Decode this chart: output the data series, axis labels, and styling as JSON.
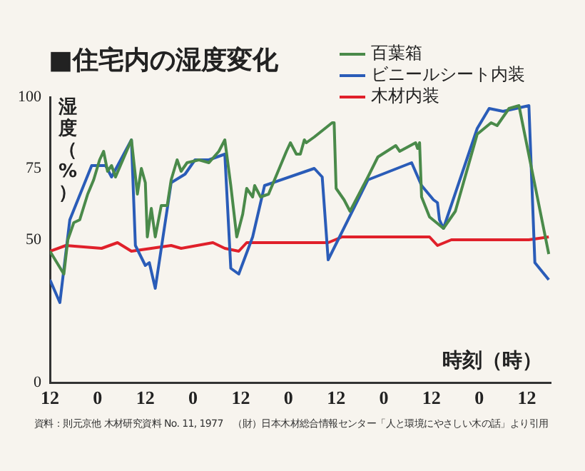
{
  "chart_data": {
    "type": "line",
    "title": "■住宅内の湿度変化",
    "xlabel": "時刻（時）",
    "ylabel": "湿度（%）",
    "legend": "top right",
    "marker": "none",
    "xlim": [
      "--01-01T12:00",
      "--01-06T18:00"
    ],
    "xticks": [
      {
        "value": "--01-01T12:00",
        "label": "12"
      },
      {
        "value": "--01-02T00:00",
        "label": "0"
      },
      {
        "value": "--01-02T12:00",
        "label": "12"
      },
      {
        "value": "--01-03T00:00",
        "label": "0"
      },
      {
        "value": "--01-03T12:00",
        "label": "12"
      },
      {
        "value": "--01-04T00:00",
        "label": "0"
      },
      {
        "value": "--01-04T12:00",
        "label": "12"
      },
      {
        "value": "--01-05T00:00",
        "label": "0"
      },
      {
        "value": "--01-05T12:00",
        "label": "12"
      },
      {
        "value": "--01-06T00:00",
        "label": "0"
      },
      {
        "value": "--01-06T12:00",
        "label": "12"
      }
    ],
    "ylim": [
      0,
      100
    ],
    "yticks": [
      0,
      50,
      75,
      100
    ],
    "series": [
      {
        "name": "百葉箱",
        "color": "#4a8a4a",
        "x": [
          "--01-01T12:00",
          "--01-01T15:30",
          "--01-01T16:30",
          "--01-01T18:00",
          "--01-01T19:30",
          "--01-01T21:30",
          "--01-01T23:00",
          "--01-02T00:30",
          "--01-02T01:30",
          "--01-02T02:30",
          "--01-02T03:30",
          "--01-02T04:30",
          "--01-02T08:30",
          "--01-02T10:00",
          "--01-02T11:00",
          "--01-02T12:00",
          "--01-02T12:30",
          "--01-02T13:30",
          "--01-02T14:30",
          "--01-02T16:00",
          "--01-02T17:30",
          "--01-02T18:30",
          "--01-02T20:00",
          "--01-02T21:00",
          "--01-02T22:30",
          "--01-03T01:30",
          "--01-03T04:00",
          "--01-03T06:30",
          "--01-03T08:00",
          "--01-03T09:30",
          "--01-03T11:00",
          "--01-03T12:30",
          "--01-03T13:30",
          "--01-03T15:00",
          "--01-03T15:30",
          "--01-03T17:00",
          "--01-03T19:00",
          "--01-03T20:30",
          "--01-03T23:30",
          "--01-04T00:30",
          "--01-04T02:00",
          "--01-04T03:00",
          "--01-04T04:00",
          "--01-04T04:30",
          "--01-04T06:30",
          "--01-04T11:00",
          "--01-04T11:30",
          "--01-04T12:00",
          "--01-04T13:00",
          "--01-04T14:00",
          "--01-04T15:30",
          "--01-04T20:00",
          "--01-04T22:30",
          "--01-05T03:00",
          "--01-05T04:00",
          "--01-05T08:00",
          "--01-05T08:30",
          "--01-05T09:00",
          "--01-05T09:30",
          "--01-05T11:30",
          "--01-05T15:00",
          "--01-05T18:00",
          "--01-05T23:30",
          "--01-06T03:00",
          "--01-06T04:30",
          "--01-06T07:30",
          "--01-06T10:00",
          "--01-06T17:30"
        ],
        "values": [
          46,
          38,
          50,
          56,
          57,
          66,
          71,
          78,
          81,
          74,
          76,
          72,
          85,
          66,
          75,
          70,
          51,
          61,
          51,
          62,
          62,
          71,
          78,
          74,
          77,
          78,
          77,
          81,
          85,
          69,
          51,
          59,
          68,
          65,
          69,
          65,
          66,
          71,
          81,
          84,
          80,
          80,
          85,
          84,
          86,
          91,
          91,
          68,
          66,
          64,
          60,
          72,
          79,
          83,
          81,
          84,
          82,
          84,
          65,
          58,
          54,
          60,
          87,
          91,
          90,
          96,
          97,
          45
        ]
      },
      {
        "name": "ビニールシート内装",
        "color": "#2a5cb8",
        "x": [
          "--01-01T12:00",
          "--01-01T14:30",
          "--01-01T17:00",
          "--01-01T22:30",
          "--01-02T02:00",
          "--01-02T03:30",
          "--01-02T08:30",
          "--01-02T09:30",
          "--01-02T12:00",
          "--01-02T13:00",
          "--01-02T14:30",
          "--01-02T18:30",
          "--01-02T22:00",
          "--01-03T00:30",
          "--01-03T04:00",
          "--01-03T08:00",
          "--01-03T09:30",
          "--01-03T11:30",
          "--01-03T15:00",
          "--01-03T18:00",
          "--01-04T06:30",
          "--01-04T08:30",
          "--01-04T10:00",
          "--01-04T20:00",
          "--01-05T07:00",
          "--01-05T09:30",
          "--01-05T12:30",
          "--01-05T13:30",
          "--01-05T14:00",
          "--01-05T15:00",
          "--01-05T23:30",
          "--01-06T02:30",
          "--01-06T06:00",
          "--01-06T12:30",
          "--01-06T14:00",
          "--01-06T17:30"
        ],
        "values": [
          36,
          28,
          57,
          76,
          76,
          72,
          85,
          48,
          41,
          42,
          33,
          70,
          73,
          78,
          78,
          80,
          40,
          38,
          51,
          69,
          75,
          72,
          43,
          71,
          77,
          69,
          64,
          63,
          57,
          54,
          89,
          96,
          95,
          97,
          42,
          36
        ]
      },
      {
        "name": "木材内装",
        "color": "#e0202a",
        "x": [
          "--01-01T12:00",
          "--01-01T16:00",
          "--01-02T01:00",
          "--01-02T05:00",
          "--01-02T08:30",
          "--01-02T18:30",
          "--01-02T21:00",
          "--01-03T05:00",
          "--01-03T08:00",
          "--01-03T11:30",
          "--01-03T13:30",
          "--01-04T06:30",
          "--01-04T10:00",
          "--01-04T13:30",
          "--01-05T11:30",
          "--01-05T13:30",
          "--01-05T17:00",
          "--01-06T12:30",
          "--01-06T17:30"
        ],
        "values": [
          46,
          48,
          47,
          49,
          46,
          48,
          47,
          49,
          47,
          46,
          49,
          49,
          49,
          51,
          51,
          48,
          50,
          50,
          51
        ]
      }
    ],
    "annotations": [
      "資料：則元京他 木材研究資料 No. 11, 1977　（財）日本木材総合情報センター「人と環境にやさしい木の話」より引用"
    ]
  }
}
